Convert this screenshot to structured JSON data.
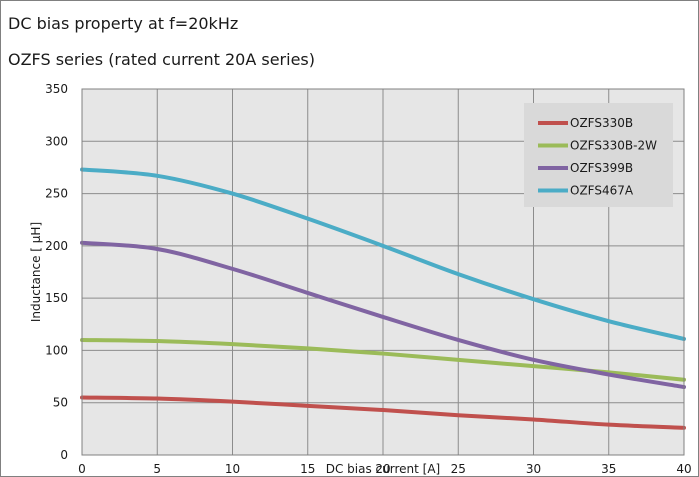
{
  "chart_data": {
    "type": "line",
    "title": "DC bias property at f=20kHz",
    "subtitle": "OZFS series (rated current 20A series)",
    "xlabel": "DC bias current [A]",
    "ylabel": "Inductance [ μH]",
    "xlim": [
      0,
      40
    ],
    "ylim": [
      0,
      350
    ],
    "xticks": [
      0,
      5,
      10,
      15,
      20,
      25,
      30,
      35,
      40
    ],
    "yticks": [
      0,
      50,
      100,
      150,
      200,
      250,
      300,
      350
    ],
    "grid": true,
    "legend_position": "top-right",
    "x": [
      0,
      5,
      10,
      15,
      20,
      25,
      30,
      35,
      40
    ],
    "series": [
      {
        "name": "OZFS330B",
        "color": "#c0504d",
        "values": [
          55,
          54,
          51,
          47,
          43,
          38,
          34,
          29,
          26
        ]
      },
      {
        "name": "OZFS330B-2W",
        "color": "#9bbb59",
        "values": [
          110,
          109,
          106,
          102,
          97,
          91,
          85,
          79,
          72
        ]
      },
      {
        "name": "OZFS399B",
        "color": "#8064a2",
        "values": [
          203,
          197,
          178,
          155,
          132,
          110,
          91,
          77,
          65
        ]
      },
      {
        "name": "OZFS467A",
        "color": "#4bacc6",
        "values": [
          273,
          267,
          250,
          226,
          200,
          173,
          149,
          128,
          111
        ]
      }
    ]
  }
}
